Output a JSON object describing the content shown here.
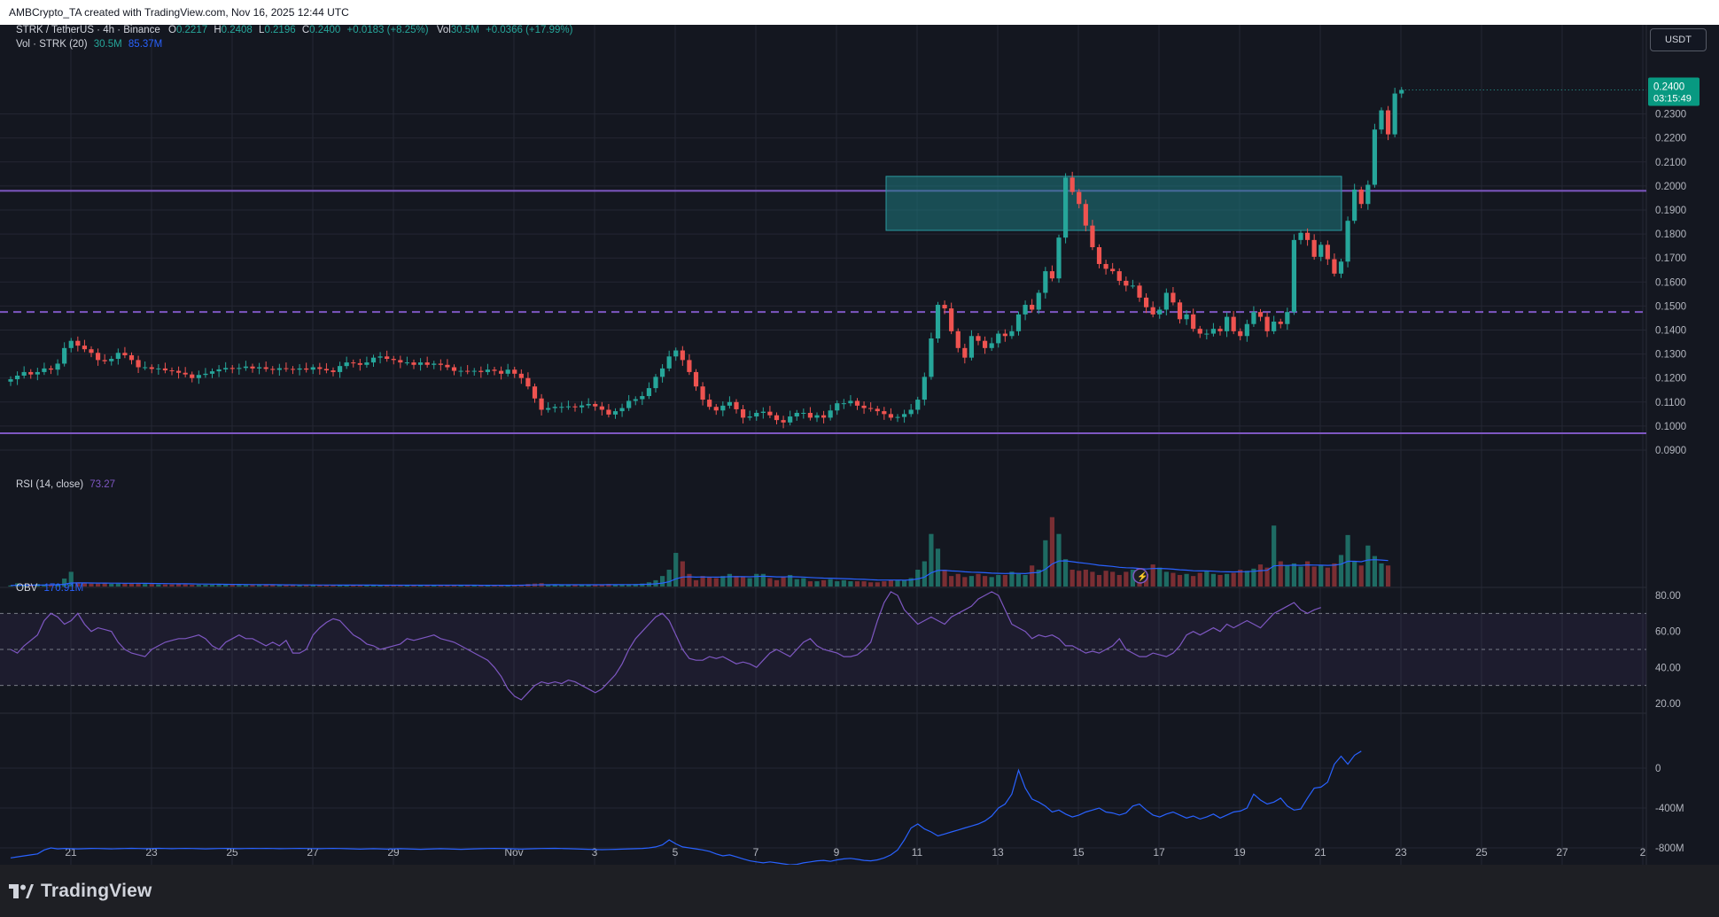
{
  "header": {
    "caption": "AMBCrypto_TA created with TradingView.com, Nov 16, 2025 12:44 UTC"
  },
  "legend": {
    "symbol": "STRK / TetherUS · 4h · Binance",
    "o_label": "O",
    "o": "0.2217",
    "h_label": "H",
    "h": "0.2408",
    "l_label": "L",
    "l": "0.2196",
    "c_label": "C",
    "c": "0.2400",
    "change": "+0.0183 (+8.25%)",
    "vol_label": "Vol",
    "vol": "30.5M",
    "vol_change": "+0.0366 (+17.99%)",
    "vol_ma_label": "Vol · STRK (20)",
    "vol_ma_1": "30.5M",
    "vol_ma_2": "85.37M",
    "rsi_label": "RSI (14, close)",
    "rsi_value": "73.27",
    "obv_label": "OBV",
    "obv_value": "170.91M"
  },
  "currency_button": "USDT",
  "price_tag": {
    "price": "0.2400",
    "countdown": "03:15:49"
  },
  "colors": {
    "background": "#141720",
    "up": "#26a69a",
    "down": "#ef5350",
    "level_line": "#7e57c2",
    "zone_fill": "#1d7a80",
    "rsi_line": "#7e57c2",
    "obv_line": "#2962ff",
    "volume_ma": "#2962ff",
    "grid": "#242733"
  },
  "footer": {
    "brand": "TradingView",
    "logo_icon": "tradingview-logo-icon"
  },
  "chart_data": [
    {
      "type": "candlestick",
      "title": "STRK / TetherUS · 4h · Binance",
      "ylim": [
        0.0845,
        0.2512
      ],
      "y_ticks": [
        "0.2300",
        "0.2200",
        "0.2100",
        "0.2000",
        "0.1900",
        "0.1800",
        "0.1700",
        "0.1600",
        "0.1500",
        "0.1400",
        "0.1300",
        "0.1200",
        "0.1100",
        "0.1000",
        "0.0900"
      ],
      "x_ticks": [
        "21",
        "23",
        "25",
        "27",
        "29",
        "Nov",
        "3",
        "5",
        "7",
        "9",
        "11",
        "13",
        "15",
        "17",
        "19",
        "21",
        "23",
        "25",
        "27",
        "2"
      ],
      "horizontal_levels": [
        {
          "price": 0.198,
          "style": "solid"
        },
        {
          "price": 0.1475,
          "style": "dashed"
        },
        {
          "price": 0.097,
          "style": "solid"
        }
      ],
      "zone": {
        "from": "Nov 10",
        "to": "Nov 21",
        "low": 0.1815,
        "high": 0.204
      },
      "close_series": [
        0.1195,
        0.121,
        0.1225,
        0.1215,
        0.1225,
        0.124,
        0.1235,
        0.126,
        0.1325,
        0.1355,
        0.1335,
        0.132,
        0.1305,
        0.1275,
        0.127,
        0.128,
        0.1305,
        0.1295,
        0.1275,
        0.1245,
        0.1245,
        0.1238,
        0.124,
        0.1232,
        0.123,
        0.1222,
        0.1215,
        0.12,
        0.1213,
        0.1218,
        0.1228,
        0.1236,
        0.1242,
        0.1238,
        0.1242,
        0.1248,
        0.124,
        0.1245,
        0.1238,
        0.1234,
        0.1241,
        0.1238,
        0.1235,
        0.124,
        0.1235,
        0.1245,
        0.1238,
        0.1232,
        0.1225,
        0.125,
        0.1265,
        0.1262,
        0.1255,
        0.1265,
        0.1285,
        0.129,
        0.128,
        0.1275,
        0.1265,
        0.1265,
        0.1255,
        0.1265,
        0.1255,
        0.126,
        0.1255,
        0.1245,
        0.123,
        0.123,
        0.1228,
        0.123,
        0.1225,
        0.1235,
        0.123,
        0.1218,
        0.1235,
        0.1218,
        0.12,
        0.1165,
        0.1115,
        0.1068,
        0.1075,
        0.108,
        0.108,
        0.1082,
        0.1078,
        0.1086,
        0.1092,
        0.1082,
        0.1068,
        0.1048,
        0.1062,
        0.1075,
        0.1105,
        0.1112,
        0.1125,
        0.1158,
        0.1205,
        0.124,
        0.129,
        0.1315,
        0.1275,
        0.1225,
        0.1165,
        0.111,
        0.108,
        0.1065,
        0.1085,
        0.11,
        0.107,
        0.1035,
        0.104,
        0.1055,
        0.106,
        0.1045,
        0.1025,
        0.1015,
        0.104,
        0.1055,
        0.1055,
        0.1035,
        0.1045,
        0.1035,
        0.1065,
        0.1095,
        0.1095,
        0.1105,
        0.1085,
        0.1075,
        0.1072,
        0.1062,
        0.105,
        0.1035,
        0.1038,
        0.105,
        0.1068,
        0.111,
        0.1205,
        0.1365,
        0.1505,
        0.149,
        0.1395,
        0.1325,
        0.1285,
        0.1375,
        0.1355,
        0.1325,
        0.1345,
        0.1385,
        0.1375,
        0.1395,
        0.1465,
        0.1505,
        0.1485,
        0.1555,
        0.1645,
        0.1615,
        0.1785,
        0.2035,
        0.1975,
        0.1925,
        0.1835,
        0.1745,
        0.1675,
        0.1655,
        0.1645,
        0.1605,
        0.1585,
        0.1585,
        0.1535,
        0.1495,
        0.1465,
        0.1485,
        0.1555,
        0.1515,
        0.1445,
        0.1465,
        0.1405,
        0.1385,
        0.1385,
        0.1405,
        0.1395,
        0.1455,
        0.1395,
        0.1375,
        0.1425,
        0.1475,
        0.1455,
        0.1395,
        0.1435,
        0.1425,
        0.1475,
        0.1775,
        0.1805,
        0.1775,
        0.1705,
        0.1755,
        0.1695,
        0.1635,
        0.1685,
        0.1855,
        0.1985,
        0.1925,
        0.2005,
        0.2235,
        0.2315,
        0.2215,
        0.2385,
        0.24
      ],
      "last_price": 0.24
    },
    {
      "type": "bar",
      "title": "Vol · STRK (20)",
      "values_relative": [
        0.05,
        0.15,
        0.08,
        0.08,
        0.12,
        0.1,
        0.1,
        0.12,
        0.38,
        0.7,
        0.2,
        0.16,
        0.14,
        0.14,
        0.16,
        0.13,
        0.14,
        0.14,
        0.14,
        0.15,
        0.12,
        0.12,
        0.1,
        0.1,
        0.1,
        0.11,
        0.1,
        0.08,
        0.08,
        0.08,
        0.08,
        0.08,
        0.08,
        0.07,
        0.07,
        0.07,
        0.07,
        0.07,
        0.07,
        0.07,
        0.06,
        0.06,
        0.06,
        0.06,
        0.06,
        0.06,
        0.06,
        0.06,
        0.06,
        0.06,
        0.06,
        0.06,
        0.06,
        0.06,
        0.06,
        0.06,
        0.06,
        0.06,
        0.06,
        0.06,
        0.06,
        0.06,
        0.06,
        0.06,
        0.06,
        0.06,
        0.06,
        0.06,
        0.06,
        0.06,
        0.06,
        0.06,
        0.06,
        0.06,
        0.06,
        0.06,
        0.08,
        0.12,
        0.14,
        0.16,
        0.1,
        0.1,
        0.08,
        0.08,
        0.08,
        0.08,
        0.08,
        0.08,
        0.1,
        0.12,
        0.1,
        0.1,
        0.1,
        0.12,
        0.14,
        0.2,
        0.3,
        0.5,
        0.8,
        1.6,
        1.2,
        0.6,
        0.3,
        0.5,
        0.45,
        0.4,
        0.5,
        0.6,
        0.5,
        0.45,
        0.4,
        0.6,
        0.6,
        0.4,
        0.3,
        0.45,
        0.55,
        0.35,
        0.4,
        0.25,
        0.25,
        0.3,
        0.35,
        0.25,
        0.3,
        0.25,
        0.25,
        0.25,
        0.2,
        0.2,
        0.25,
        0.3,
        0.3,
        0.3,
        0.4,
        0.8,
        1.2,
        2.5,
        1.8,
        0.8,
        0.5,
        0.6,
        0.45,
        0.5,
        0.6,
        0.5,
        0.45,
        0.55,
        0.55,
        0.7,
        0.6,
        0.55,
        1.0,
        0.8,
        2.2,
        3.3,
        2.5,
        1.3,
        0.8,
        0.75,
        0.8,
        0.7,
        0.55,
        0.75,
        0.7,
        0.55,
        0.7,
        0.8,
        0.65,
        0.6,
        1.05,
        0.9,
        0.7,
        0.65,
        0.55,
        0.6,
        0.5,
        0.65,
        0.75,
        0.6,
        0.55,
        0.6,
        0.65,
        0.8,
        0.75,
        0.85,
        1.05,
        0.9,
        2.9,
        1.2,
        1.0,
        1.1,
        0.95,
        1.2,
        0.95,
        1.0,
        0.9,
        1.1,
        1.5,
        2.45,
        1.2,
        1.0,
        1.95,
        1.45,
        1.1,
        1.0
      ],
      "volume_ma_last": "85.37M"
    },
    {
      "type": "line",
      "title": "RSI (14, close)",
      "ylim": [
        20,
        80
      ],
      "y_ticks": [
        "80.00",
        "60.00",
        "40.00",
        "20.00"
      ],
      "bands": [
        70,
        50,
        30
      ],
      "last_value": 73.27,
      "values": [
        50,
        48,
        52,
        55,
        58,
        66,
        70,
        68,
        64,
        66,
        70,
        64,
        60,
        62,
        61,
        60,
        54,
        50,
        48,
        47,
        46,
        50,
        52,
        54,
        55,
        56,
        56,
        57,
        58,
        56,
        52,
        50,
        54,
        56,
        58,
        56,
        56,
        54,
        52,
        54,
        52,
        55,
        48,
        48,
        50,
        58,
        62,
        65,
        67,
        66,
        62,
        58,
        56,
        53,
        52,
        50,
        51,
        52,
        53,
        56,
        55,
        56,
        57,
        58,
        56,
        55,
        54,
        52,
        50,
        48,
        46,
        44,
        40,
        35,
        28,
        24,
        22,
        26,
        30,
        32,
        31,
        32,
        31,
        33,
        32,
        30,
        28,
        26,
        28,
        32,
        36,
        42,
        50,
        56,
        60,
        64,
        68,
        70,
        66,
        58,
        50,
        45,
        44,
        44,
        46,
        45,
        46,
        44,
        42,
        43,
        42,
        40,
        44,
        48,
        50,
        48,
        46,
        50,
        54,
        56,
        52,
        50,
        49,
        48,
        46,
        46,
        47,
        50,
        54,
        66,
        76,
        82,
        80,
        72,
        68,
        64,
        66,
        68,
        66,
        64,
        68,
        70,
        72,
        74,
        78,
        80,
        82,
        80,
        72,
        64,
        62,
        60,
        56,
        58,
        57,
        58,
        56,
        52,
        52,
        50,
        48,
        49,
        48,
        50,
        52,
        56,
        50,
        48,
        46,
        46,
        48,
        47,
        46,
        48,
        52,
        58,
        60,
        58,
        60,
        62,
        60,
        64,
        62,
        64,
        66,
        64,
        62,
        66,
        70,
        72,
        74,
        76,
        72,
        70,
        72,
        73.27
      ]
    },
    {
      "type": "line",
      "title": "OBV",
      "y_ticks": [
        "0",
        "-400M",
        "-800M"
      ],
      "last_value": "170.91M",
      "values_M": [
        -900,
        -890,
        -880,
        -870,
        -860,
        -820,
        -800,
        -810,
        -805,
        -808,
        -810,
        -808,
        -805,
        -806,
        -808,
        -810,
        -808,
        -806,
        -804,
        -806,
        -808,
        -806,
        -804,
        -806,
        -808,
        -806,
        -805,
        -806,
        -808,
        -810,
        -808,
        -806,
        -805,
        -806,
        -808,
        -806,
        -805,
        -806,
        -805,
        -806,
        -808,
        -807,
        -806,
        -805,
        -806,
        -807,
        -808,
        -806,
        -805,
        -806,
        -808,
        -810,
        -812,
        -810,
        -808,
        -810,
        -812,
        -810,
        -808,
        -810,
        -812,
        -814,
        -812,
        -810,
        -808,
        -810,
        -812,
        -814,
        -812,
        -810,
        -808,
        -806,
        -805,
        -806,
        -808,
        -810,
        -812,
        -810,
        -808,
        -806,
        -805,
        -804,
        -806,
        -808,
        -810,
        -812,
        -814,
        -816,
        -818,
        -816,
        -814,
        -812,
        -810,
        -808,
        -805,
        -800,
        -790,
        -770,
        -720,
        -760,
        -790,
        -800,
        -810,
        -820,
        -835,
        -860,
        -880,
        -870,
        -890,
        -910,
        -930,
        -940,
        -950,
        -940,
        -950,
        -960,
        -970,
        -965,
        -950,
        -940,
        -930,
        -925,
        -935,
        -920,
        -910,
        -905,
        -915,
        -925,
        -930,
        -920,
        -900,
        -870,
        -820,
        -720,
        -600,
        -560,
        -610,
        -640,
        -680,
        -660,
        -640,
        -620,
        -600,
        -580,
        -560,
        -530,
        -480,
        -400,
        -360,
        -260,
        -20,
        -200,
        -310,
        -340,
        -380,
        -440,
        -420,
        -460,
        -490,
        -470,
        -440,
        -420,
        -400,
        -440,
        -450,
        -470,
        -450,
        -380,
        -360,
        -420,
        -470,
        -490,
        -460,
        -440,
        -470,
        -500,
        -480,
        -510,
        -490,
        -460,
        -500,
        -470,
        -440,
        -430,
        -400,
        -260,
        -320,
        -360,
        -340,
        -300,
        -380,
        -420,
        -410,
        -300,
        -200,
        -190,
        -140,
        40,
        120,
        40,
        130,
        170.91
      ]
    }
  ]
}
